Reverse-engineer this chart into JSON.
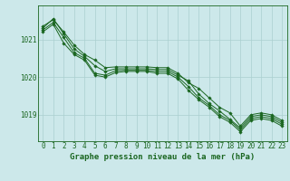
{
  "background_color": "#cce8ea",
  "grid_color": "#aacfcf",
  "line_color": "#1a6620",
  "xlabel": "Graphe pression niveau de la mer (hPa)",
  "xlabel_fontsize": 6.5,
  "tick_fontsize": 5.5,
  "xlim": [
    -0.5,
    23.5
  ],
  "ylim": [
    1018.3,
    1021.9
  ],
  "yticks": [
    1019,
    1020,
    1021
  ],
  "xticks": [
    0,
    1,
    2,
    3,
    4,
    5,
    6,
    7,
    8,
    9,
    10,
    11,
    12,
    13,
    14,
    15,
    16,
    17,
    18,
    19,
    20,
    21,
    22,
    23
  ],
  "series": [
    [
      1021.35,
      1021.52,
      1021.2,
      1020.85,
      1020.6,
      1020.45,
      1020.25,
      1020.27,
      1020.27,
      1020.27,
      1020.27,
      1020.25,
      1020.25,
      1020.1,
      1019.85,
      1019.7,
      1019.45,
      1019.2,
      1019.05,
      1018.7,
      1019.0,
      1019.05,
      1019.0,
      1018.85
    ],
    [
      1021.3,
      1021.55,
      1021.15,
      1020.75,
      1020.55,
      1020.3,
      1020.15,
      1020.22,
      1020.22,
      1020.22,
      1020.22,
      1020.2,
      1020.2,
      1020.05,
      1019.9,
      1019.55,
      1019.3,
      1019.1,
      1018.88,
      1018.65,
      1018.95,
      1019.0,
      1018.95,
      1018.8
    ],
    [
      1021.25,
      1021.45,
      1021.05,
      1020.65,
      1020.5,
      1020.1,
      1020.05,
      1020.17,
      1020.18,
      1020.18,
      1020.18,
      1020.15,
      1020.15,
      1020.0,
      1019.75,
      1019.45,
      1019.25,
      1019.0,
      1018.85,
      1018.6,
      1018.9,
      1018.95,
      1018.9,
      1018.75
    ],
    [
      1021.2,
      1021.4,
      1020.9,
      1020.6,
      1020.45,
      1020.05,
      1020.0,
      1020.12,
      1020.15,
      1020.15,
      1020.15,
      1020.1,
      1020.1,
      1019.95,
      1019.65,
      1019.4,
      1019.2,
      1018.95,
      1018.8,
      1018.55,
      1018.85,
      1018.9,
      1018.85,
      1018.7
    ]
  ]
}
